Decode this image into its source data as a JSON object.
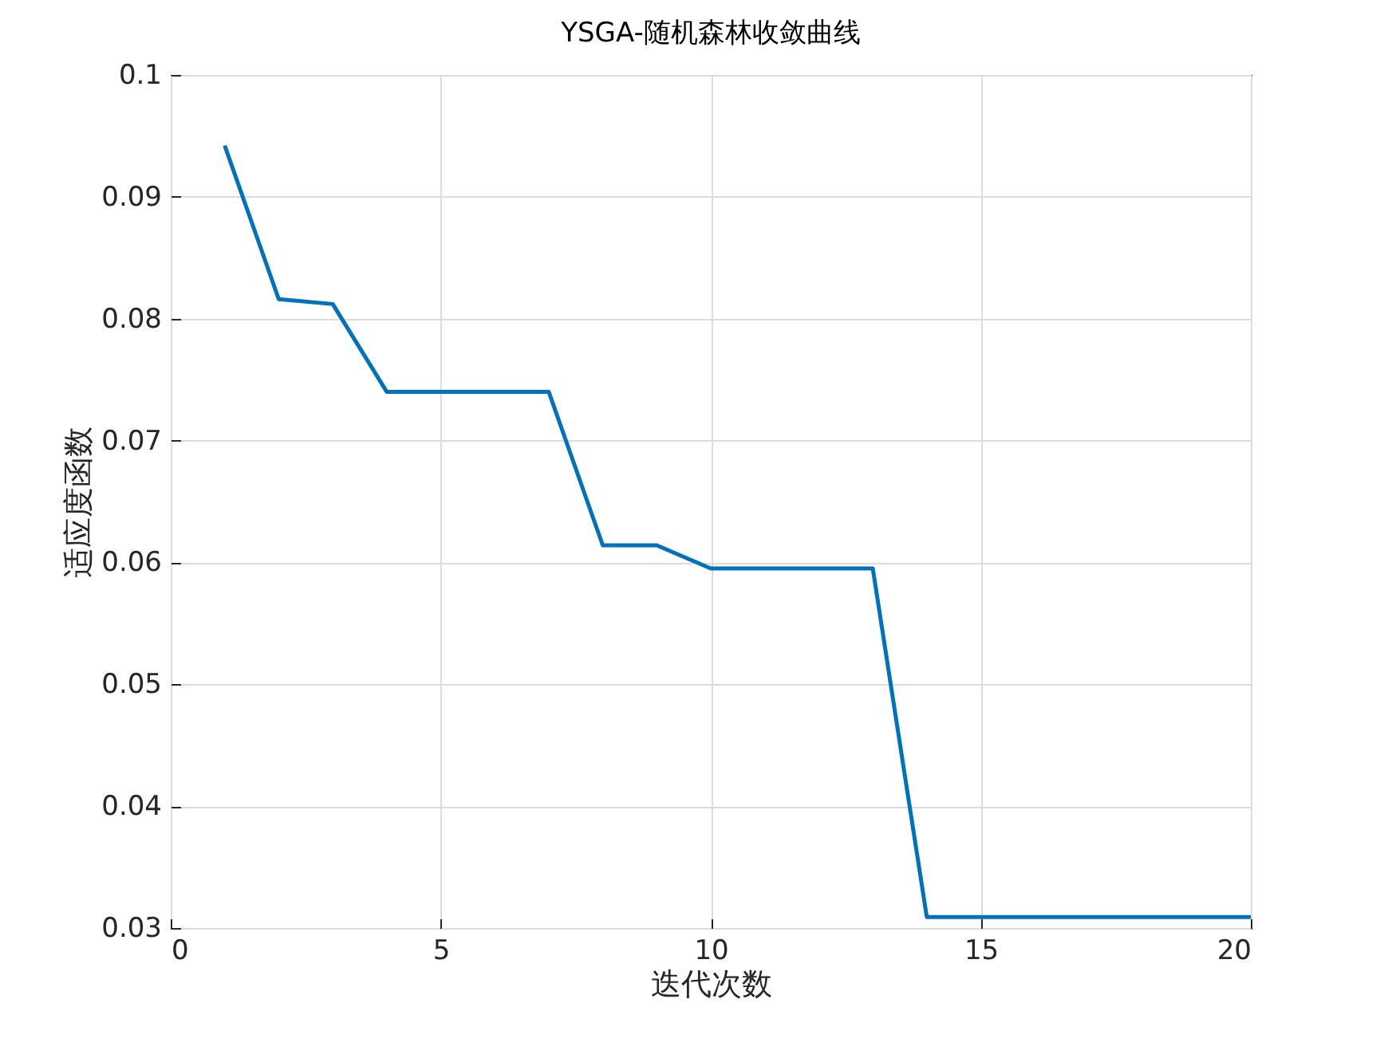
{
  "chart_data": {
    "type": "line",
    "title": "YSGA-随机森林收敛曲线",
    "xlabel": "迭代次数",
    "ylabel": "适应度函数",
    "x": [
      1,
      2,
      3,
      4,
      5,
      6,
      7,
      8,
      9,
      10,
      11,
      12,
      13,
      14,
      15,
      16,
      17,
      18,
      19,
      20
    ],
    "series": [
      {
        "color": "#0072bd",
        "values": [
          0.0942,
          0.0816,
          0.0812,
          0.074,
          0.074,
          0.074,
          0.074,
          0.0614,
          0.0614,
          0.0595,
          0.0595,
          0.0595,
          0.0595,
          0.0309,
          0.0309,
          0.0309,
          0.0309,
          0.0309,
          0.0309,
          0.0309
        ]
      }
    ],
    "xlim": [
      0,
      20
    ],
    "xticks": [
      0,
      5,
      10,
      15,
      20
    ],
    "ylim": [
      0.03,
      0.1
    ],
    "yticks": [
      0.03,
      0.04,
      0.05,
      0.06,
      0.07,
      0.08,
      0.09,
      0.1
    ],
    "grid": true,
    "legend": false,
    "marker": "none",
    "line_style": "solid"
  }
}
